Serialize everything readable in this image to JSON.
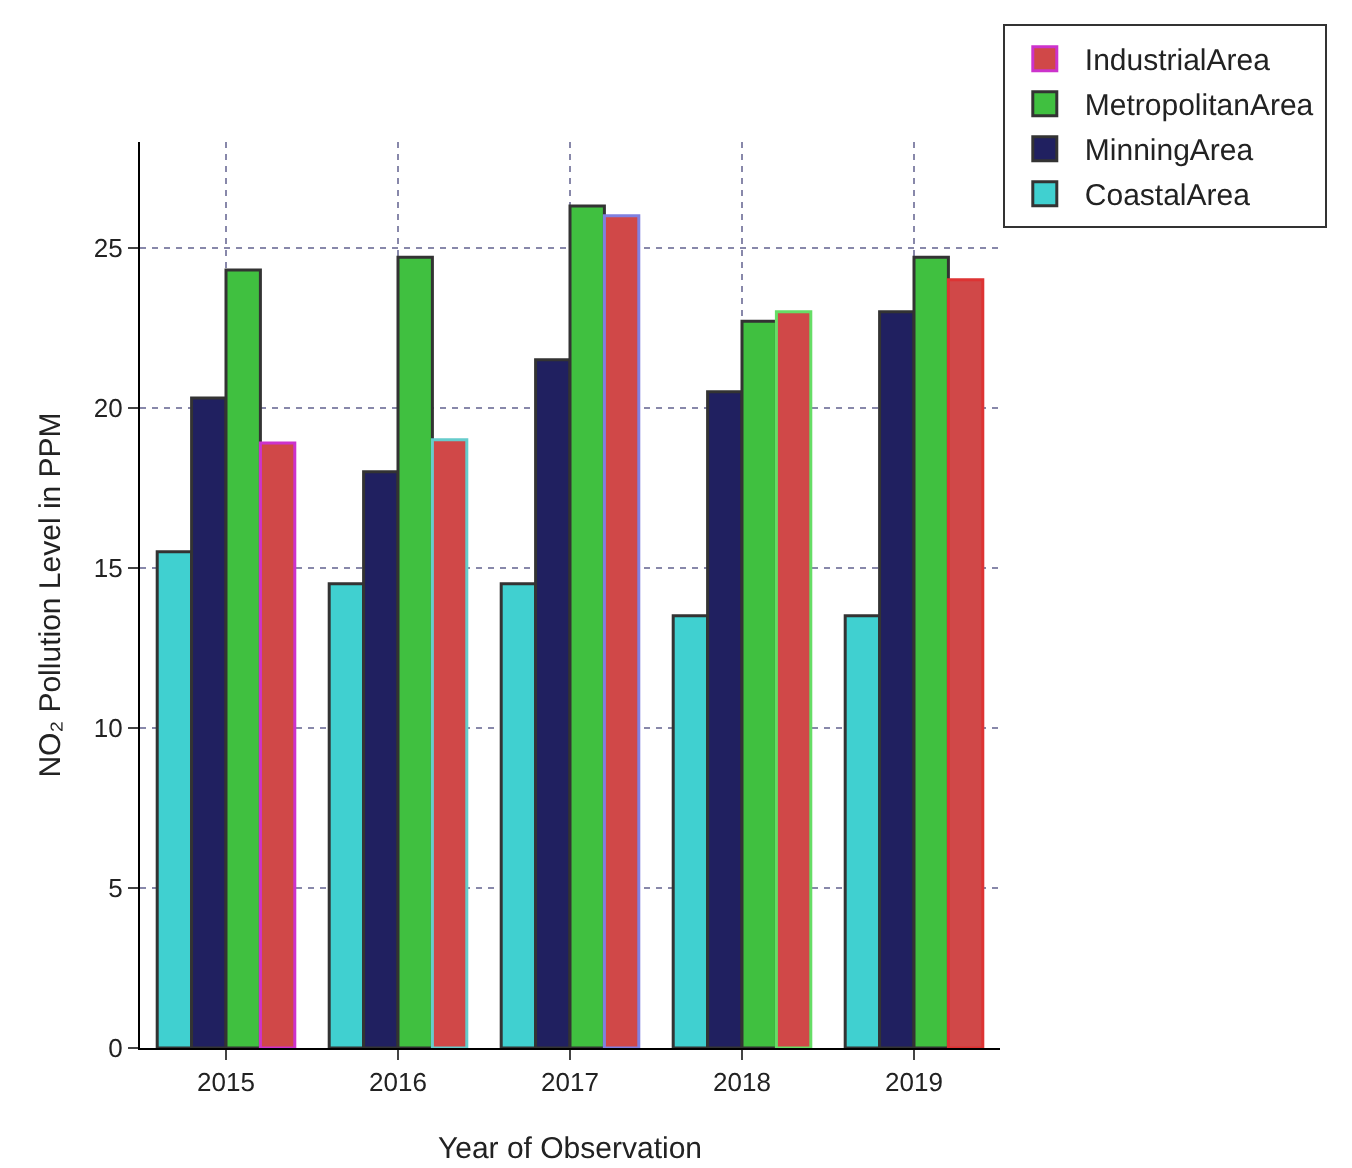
{
  "chart_data": {
    "type": "bar",
    "xlabel": "Year of Observation",
    "ylabel": "NO₂ Pollution Level in PPM",
    "categories": [
      "2015",
      "2016",
      "2017",
      "2018",
      "2019"
    ],
    "series": [
      {
        "name": "CoastalArea",
        "color": "#40d0d0",
        "values": [
          15.5,
          14.5,
          14.5,
          13.5,
          13.5
        ]
      },
      {
        "name": "MinningArea",
        "color": "#202060",
        "values": [
          20.3,
          18,
          21.5,
          20.5,
          23.0
        ]
      },
      {
        "name": "MetropolitanArea",
        "color": "#40c040",
        "values": [
          24.3,
          24.7,
          26.3,
          22.7,
          24.7
        ]
      },
      {
        "name": "IndustrialArea",
        "color": "#d04848",
        "colors": [
          "#cc33cc",
          "#66cccc",
          "#8080e0",
          "#66dd66",
          "#dd3333"
        ],
        "values": [
          18.9,
          19.0,
          26.0,
          23.0,
          24.0
        ]
      }
    ],
    "ylim": [
      0,
      28.3
    ],
    "yticks": [
      0,
      5,
      10,
      15,
      20,
      25
    ],
    "grid": true,
    "legend": "top right"
  }
}
